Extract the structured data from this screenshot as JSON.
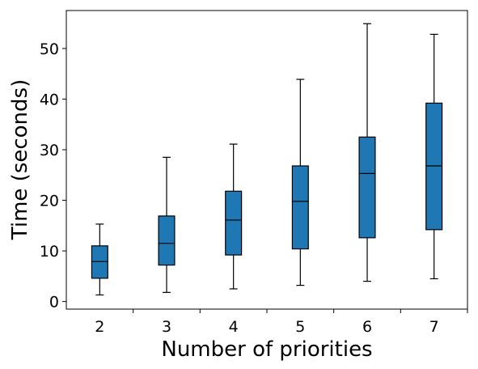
{
  "chart_data": {
    "type": "box",
    "title": "",
    "xlabel": "Number of priorities",
    "ylabel": "Time (seconds)",
    "categories": [
      "2",
      "3",
      "4",
      "5",
      "6",
      "7"
    ],
    "ylim": [
      -1.5,
      57.5
    ],
    "yticks": [
      0,
      10,
      20,
      30,
      40,
      50
    ],
    "box_color": "#1f77b4",
    "line_color": "#000000",
    "grid": false,
    "legend": "none",
    "boxes": [
      {
        "category": "2",
        "whisker_low": 1.3,
        "q1": 4.6,
        "median": 7.9,
        "q3": 11.0,
        "whisker_high": 15.3
      },
      {
        "category": "3",
        "whisker_low": 1.8,
        "q1": 7.2,
        "median": 11.5,
        "q3": 16.9,
        "whisker_high": 28.5
      },
      {
        "category": "4",
        "whisker_low": 2.5,
        "q1": 9.2,
        "median": 16.1,
        "q3": 21.8,
        "whisker_high": 31.1
      },
      {
        "category": "5",
        "whisker_low": 3.2,
        "q1": 10.4,
        "median": 19.8,
        "q3": 26.8,
        "whisker_high": 43.9
      },
      {
        "category": "6",
        "whisker_low": 4.0,
        "q1": 12.6,
        "median": 25.3,
        "q3": 32.5,
        "whisker_high": 54.9
      },
      {
        "category": "7",
        "whisker_low": 4.5,
        "q1": 14.2,
        "median": 26.8,
        "q3": 39.2,
        "whisker_high": 52.8
      }
    ]
  }
}
